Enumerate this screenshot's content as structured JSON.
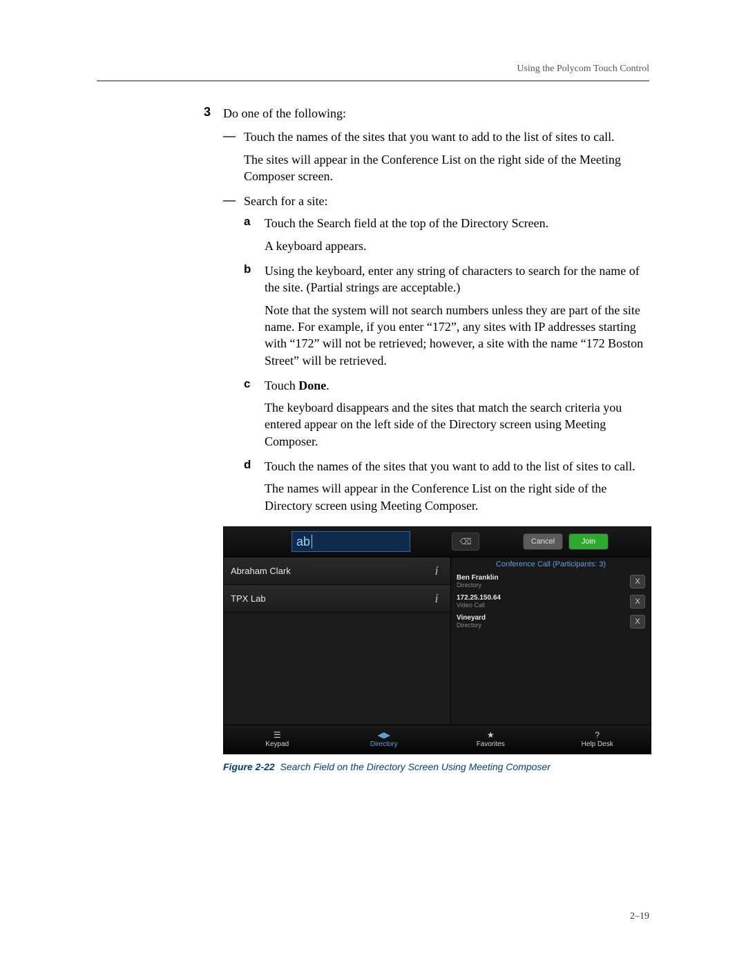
{
  "header": {
    "title": "Using the Polycom Touch Control"
  },
  "step": {
    "number": "3",
    "text": "Do one of the following:"
  },
  "bullets": [
    {
      "dash": "—",
      "text": "Touch the names of the sites that you want to add to the list of sites to call.",
      "follow": "The sites will appear in the Conference List on the right side of the Meeting Composer screen."
    },
    {
      "dash": "—",
      "text": "Search for a site:"
    }
  ],
  "subs": {
    "a": {
      "letter": "a",
      "text": "Touch the Search field at the top of the Directory Screen.",
      "follow": "A keyboard appears."
    },
    "b": {
      "letter": "b",
      "text": "Using the keyboard, enter any string of characters to search for the name of the site. (Partial strings are acceptable.)",
      "follow": "Note that the system will not search numbers unless they are part of the site name. For example, if you enter “172”, any sites with IP addresses starting with “172” will not be retrieved; however, a site with the name “172 Boston Street” will be retrieved."
    },
    "c": {
      "letter": "c",
      "text_prefix": "Touch ",
      "text_bold": "Done",
      "text_suffix": ".",
      "follow": "The keyboard disappears and the sites that match the search criteria you entered appear on the left side of the Directory screen using Meeting Composer."
    },
    "d": {
      "letter": "d",
      "text": "Touch the names of the sites that you want to add to the list of sites to call.",
      "follow": "The names will appear in the Conference List on the right side of the Directory screen using Meeting Composer."
    }
  },
  "device": {
    "search_value": "ab",
    "backspace_glyph": "⌫",
    "cancel": "Cancel",
    "join": "Join",
    "directory_rows": [
      {
        "name": "Abraham Clark"
      },
      {
        "name": "TPX Lab"
      }
    ],
    "info_glyph": "i",
    "conf_header": "Conference Call (Participants: 3)",
    "conf_items": [
      {
        "name": "Ben Franklin",
        "sub": "Directory"
      },
      {
        "name": "172.25.150.64",
        "sub": "Video Call"
      },
      {
        "name": "Vineyard",
        "sub": "Directory"
      }
    ],
    "x_label": "X",
    "nav": [
      {
        "icon": "☰",
        "label": "Keypad"
      },
      {
        "icon": "◀▶",
        "label": "Directory",
        "active": true
      },
      {
        "icon": "★",
        "label": "Favorites"
      },
      {
        "icon": "?",
        "label": "Help Desk"
      }
    ]
  },
  "figure": {
    "label": "Figure 2-22",
    "caption": "Search Field on the Directory Screen Using Meeting Composer"
  },
  "page_number": "2–19",
  "colors": {
    "header_rule": "#888888",
    "link_blue": "#004080",
    "device_bg": "#101010",
    "search_bg": "#0f2a4a",
    "search_border": "#2a68a8",
    "join_green": "#2fa82f",
    "active_blue": "#5fa2d8"
  }
}
